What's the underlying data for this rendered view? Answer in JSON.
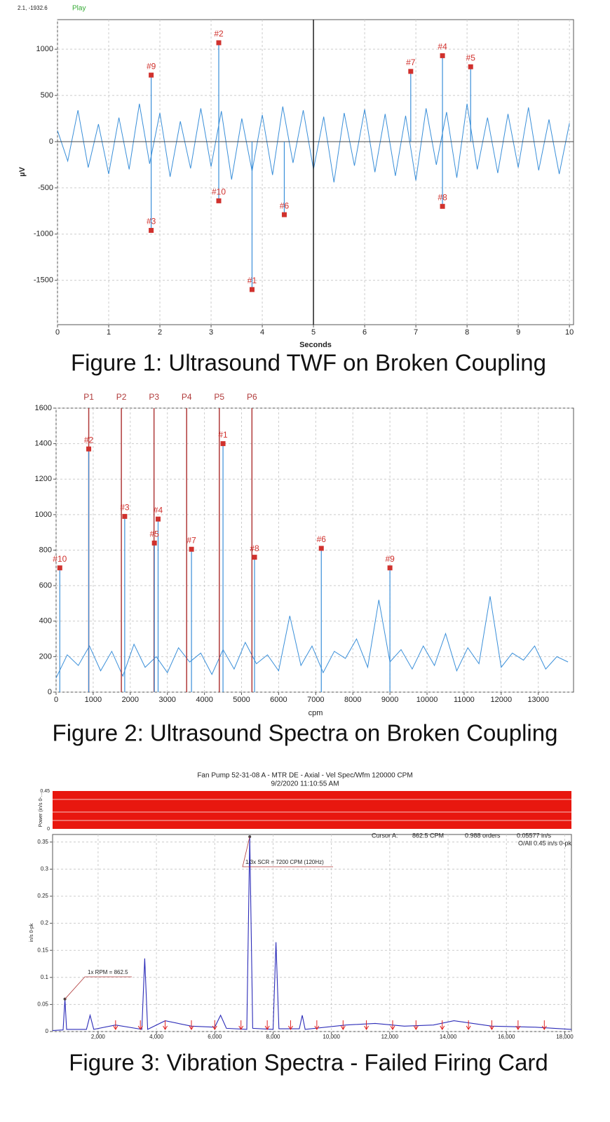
{
  "chart_data": [
    {
      "type": "line",
      "status": "2.1, -1932.6",
      "mode": "Play",
      "xlabel": "Seconds",
      "ylabel": "µV",
      "caption": "Figure 1: Ultrasound TWF on Broken Coupling",
      "xlim": [
        0,
        10.08
      ],
      "ylim": [
        -1980,
        1320
      ],
      "xticks": [
        0,
        1,
        2,
        3,
        4,
        5,
        6,
        7,
        8,
        9,
        10
      ],
      "yticks": [
        -1500,
        -1000,
        -500,
        0,
        500,
        1000
      ],
      "grid": true,
      "cursor_x": 5,
      "waveform": {
        "color": "#3a8fd9",
        "x": [
          0,
          0.2,
          0.4,
          0.6,
          0.8,
          1,
          1.2,
          1.4,
          1.6,
          1.8,
          2,
          2.2,
          2.4,
          2.6,
          2.8,
          3,
          3.2,
          3.4,
          3.6,
          3.8,
          4,
          4.2,
          4.4,
          4.6,
          4.8,
          5,
          5.2,
          5.4,
          5.6,
          5.8,
          6,
          6.2,
          6.4,
          6.6,
          6.8,
          7,
          7.2,
          7.4,
          7.6,
          7.8,
          8,
          8.2,
          8.4,
          8.6,
          8.8,
          9,
          9.2,
          9.4,
          9.6,
          9.8,
          10
        ],
        "values": [
          120,
          -210,
          340,
          -280,
          190,
          -350,
          260,
          -300,
          410,
          -240,
          310,
          -380,
          220,
          -290,
          360,
          -270,
          330,
          -410,
          250,
          -320,
          290,
          -360,
          380,
          -230,
          340,
          -300,
          270,
          -440,
          310,
          -260,
          350,
          -330,
          300,
          -370,
          280,
          -420,
          360,
          -250,
          320,
          -390,
          410,
          -300,
          260,
          -340,
          300,
          -280,
          370,
          -310,
          240,
          -350,
          200
        ]
      },
      "points": {
        "color": "#d0312d",
        "labels": [
          "#1",
          "#2",
          "#3",
          "#4",
          "#5",
          "#6",
          "#7",
          "#8",
          "#9",
          "#10"
        ],
        "x": [
          3.8,
          3.15,
          1.83,
          7.52,
          8.07,
          4.43,
          6.9,
          7.52,
          1.83,
          3.15
        ],
        "values": [
          -1600,
          1070,
          -960,
          930,
          810,
          -790,
          760,
          -700,
          720,
          -640
        ]
      }
    },
    {
      "type": "line",
      "xlabel": "cpm",
      "caption": "Figure 2: Ultrasound Spectra on Broken Coupling",
      "xlim": [
        0,
        13950
      ],
      "ylim": [
        0,
        1600
      ],
      "xticks": [
        0,
        1000,
        2000,
        3000,
        4000,
        5000,
        6000,
        7000,
        8000,
        9000,
        10000,
        11000,
        12000,
        13000
      ],
      "yticks": [
        0,
        200,
        400,
        600,
        800,
        1000,
        1200,
        1400,
        1600
      ],
      "grid": true,
      "references": {
        "color": "#b03a3a",
        "labels": [
          "P1",
          "P2",
          "P3",
          "P4",
          "P5",
          "P6"
        ],
        "x": [
          880,
          1760,
          2640,
          3520,
          4400,
          5280
        ]
      },
      "spectrum": {
        "color": "#3a8fd9",
        "x": [
          0,
          300,
          600,
          900,
          1200,
          1500,
          1800,
          2100,
          2400,
          2700,
          3000,
          3300,
          3600,
          3900,
          4200,
          4500,
          4800,
          5100,
          5400,
          5700,
          6000,
          6300,
          6600,
          6900,
          7200,
          7500,
          7800,
          8100,
          8400,
          8700,
          9000,
          9300,
          9600,
          9900,
          10200,
          10500,
          10800,
          11100,
          11400,
          11700,
          12000,
          12300,
          12600,
          12900,
          13200,
          13500,
          13800
        ],
        "values": [
          80,
          210,
          150,
          260,
          120,
          230,
          90,
          270,
          140,
          200,
          110,
          250,
          170,
          220,
          100,
          240,
          130,
          280,
          160,
          210,
          120,
          430,
          150,
          260,
          110,
          230,
          190,
          300,
          140,
          520,
          170,
          240,
          130,
          260,
          150,
          330,
          120,
          250,
          160,
          540,
          140,
          220,
          180,
          260,
          130,
          200,
          170
        ]
      },
      "points": {
        "color": "#d0312d",
        "labels": [
          "#1",
          "#2",
          "#3",
          "#4",
          "#5",
          "#6",
          "#7",
          "#8",
          "#9",
          "#10"
        ],
        "x": [
          4500,
          880,
          1850,
          2750,
          2650,
          7150,
          3650,
          5350,
          9000,
          100
        ],
        "values": [
          1400,
          1370,
          990,
          975,
          840,
          810,
          805,
          760,
          700,
          700
        ]
      }
    },
    {
      "type": "line",
      "title": "Fan Pump 52-31-08 A - MTR DE - Axial - Vel Spec/Wfm 120000 CPM",
      "subtitle": "9/2/2020 11:10:55 AM",
      "ylabel": "in/s 0-pk",
      "caption": "Figure 3: Vibration Spectra - Failed Firing Card",
      "xlim": [
        440,
        18230
      ],
      "ylim": [
        0,
        0.364
      ],
      "xticks": [
        {
          "value": 2000,
          "label": "2,000"
        },
        {
          "value": 4000,
          "label": "4,000"
        },
        {
          "value": 6000,
          "label": "6,000"
        },
        {
          "value": 8000,
          "label": "8,000"
        },
        {
          "value": 10000,
          "label": "10,000"
        },
        {
          "value": 12000,
          "label": "12,000"
        },
        {
          "value": 14000,
          "label": "14,000"
        },
        {
          "value": 16000,
          "label": "16,000"
        },
        {
          "value": 18000,
          "label": "18,000"
        }
      ],
      "yticks": [
        0,
        0.05,
        0.1,
        0.15,
        0.2,
        0.25,
        0.3,
        0.35
      ],
      "grid": true,
      "power_panel": {
        "ylabel": "Power (in/s 0-...",
        "color": "#e8170f",
        "ylim": [
          0,
          0.45
        ],
        "yticks": [
          0,
          0.45
        ]
      },
      "cursor_readout": [
        "Cursor A:",
        "862.5 CPM",
        "0.988 orders",
        "0.05577 in/s",
        "O/All 0.45 in/s 0-pk"
      ],
      "spectrum": {
        "color": "#2b2bb8",
        "x": [
          440,
          800,
          862.5,
          920,
          1600,
          1725,
          1850,
          2600,
          3500,
          3600,
          3700,
          4300,
          5200,
          6000,
          6200,
          6400,
          7100,
          7200,
          7300,
          8000,
          8100,
          8200,
          8900,
          9000,
          9100,
          10500,
          11500,
          12500,
          13500,
          14200,
          15500,
          17000,
          18230
        ],
        "values": [
          0.002,
          0.003,
          0.06,
          0.004,
          0.004,
          0.03,
          0.004,
          0.012,
          0.004,
          0.135,
          0.004,
          0.02,
          0.01,
          0.008,
          0.03,
          0.006,
          0.004,
          0.36,
          0.006,
          0.004,
          0.165,
          0.005,
          0.005,
          0.03,
          0.004,
          0.012,
          0.015,
          0.01,
          0.012,
          0.02,
          0.01,
          0.008,
          0.004
        ]
      },
      "harmonics": {
        "color": "#e02020",
        "x": [
          2600,
          3450,
          4300,
          5200,
          6000,
          6900,
          7800,
          8600,
          9500,
          10400,
          11200,
          12100,
          12900,
          13800,
          14700,
          15500,
          16400,
          17300
        ]
      },
      "annotations": [
        {
          "text": "1x RPM = 862.5",
          "x": 862.5,
          "y": 0.06
        },
        {
          "text": "1/3x SCR = 7200 CPM (120Hz)",
          "x": 7200,
          "y": 0.36
        }
      ]
    }
  ]
}
